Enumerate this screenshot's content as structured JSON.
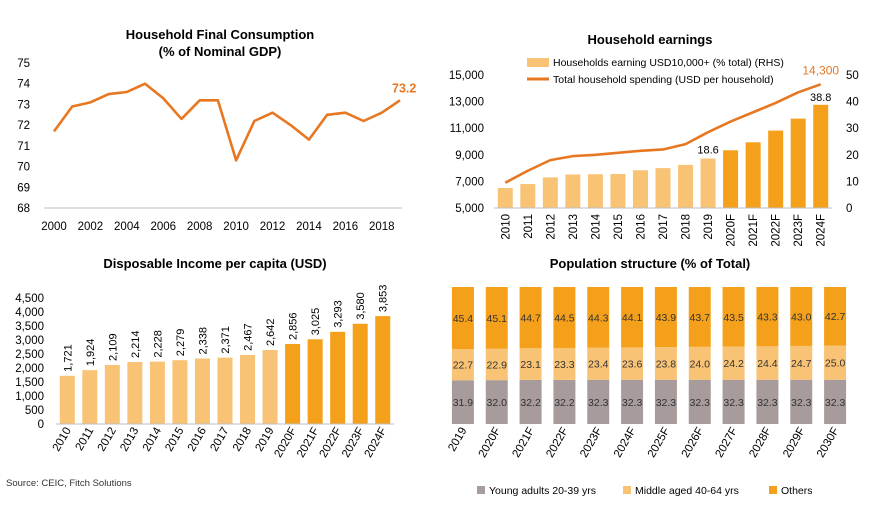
{
  "source_note": "Source: CEIC, Fitch Solutions",
  "chart_data": [
    {
      "type": "line",
      "title": "Household Final Consumption",
      "subtitle": "(% of Nominal GDP)",
      "x": [
        2000,
        2001,
        2002,
        2003,
        2004,
        2005,
        2006,
        2007,
        2008,
        2009,
        2010,
        2011,
        2012,
        2013,
        2014,
        2015,
        2016,
        2017,
        2018,
        2019
      ],
      "x_tick_labels": [
        "2000",
        "2002",
        "2004",
        "2006",
        "2008",
        "2010",
        "2012",
        "2014",
        "2016",
        "2018"
      ],
      "series": [
        {
          "values": [
            71.7,
            72.9,
            73.1,
            73.5,
            73.6,
            74.0,
            73.3,
            72.3,
            73.2,
            73.2,
            70.3,
            72.2,
            72.6,
            72.0,
            71.3,
            72.5,
            72.6,
            72.2,
            72.6,
            73.2
          ]
        }
      ],
      "end_label": "73.2",
      "ylim": [
        68,
        75
      ],
      "y_ticks": [
        "68",
        "69",
        "70",
        "71",
        "72",
        "73",
        "74",
        "75"
      ],
      "colors": {
        "line": "#e87722",
        "end_label": "#e87722"
      }
    },
    {
      "type": "bar+line",
      "title": "Household earnings",
      "categories": [
        "2010",
        "2011",
        "2012",
        "2013",
        "2014",
        "2015",
        "2016",
        "2017",
        "2018",
        "2019",
        "2020F",
        "2021F",
        "2022F",
        "2023F",
        "2024F"
      ],
      "series": [
        {
          "name": "Households earning USD10,000+ (% total) (RHS)",
          "axis": "right",
          "values": [
            7.5,
            9.0,
            11.5,
            12.6,
            12.7,
            12.8,
            14.2,
            15.0,
            16.2,
            18.6,
            21.7,
            24.7,
            29.1,
            33.6,
            38.8
          ]
        },
        {
          "name": "Total household spending (USD per household)",
          "axis": "left",
          "values": [
            6900,
            7800,
            8600,
            8900,
            9000,
            9150,
            9300,
            9400,
            9800,
            10700,
            11500,
            12200,
            12900,
            13700,
            14300
          ]
        }
      ],
      "data_labels": {
        "bar_2019": "18.6",
        "bar_2024F": "38.8",
        "line_2024F": "14,300"
      },
      "ylim_left": [
        5000,
        15000
      ],
      "y_ticks_left": [
        "5,000",
        "7,000",
        "9,000",
        "11,000",
        "13,000",
        "15,000"
      ],
      "ylim_right": [
        0,
        50
      ],
      "y_ticks_right": [
        "0",
        "10",
        "20",
        "30",
        "40",
        "50"
      ],
      "colors": {
        "actual_bar": "#f9c375",
        "forecast_bar": "#f5a01a",
        "line": "#e87722"
      }
    },
    {
      "type": "bar",
      "title": "Disposable Income per capita (USD)",
      "categories": [
        "2010",
        "2011",
        "2012",
        "2013",
        "2014",
        "2015",
        "2016",
        "2017",
        "2018",
        "2019",
        "2020F",
        "2021F",
        "2022F",
        "2023F",
        "2024F"
      ],
      "values": [
        1721,
        1924,
        2109,
        2214,
        2228,
        2279,
        2338,
        2371,
        2467,
        2642,
        2856,
        3025,
        3293,
        3580,
        3853
      ],
      "value_labels": [
        "1,721",
        "1,924",
        "2,109",
        "2,214",
        "2,228",
        "2,279",
        "2,338",
        "2,371",
        "2,467",
        "2,642",
        "2,856",
        "3,025",
        "3,293",
        "3,580",
        "3,853"
      ],
      "ylim": [
        0,
        4500
      ],
      "y_ticks": [
        "0",
        "500",
        "1,000",
        "1,500",
        "2,000",
        "2,500",
        "3,000",
        "3,500",
        "4,000",
        "4,500"
      ],
      "colors": {
        "actual_bar": "#f9c375",
        "forecast_bar": "#f5a01a"
      }
    },
    {
      "type": "stacked-bar",
      "title": "Population structure (% of Total)",
      "categories": [
        "2019",
        "2020F",
        "2021F",
        "2022F",
        "2023F",
        "2024F",
        "2025F",
        "2026F",
        "2027F",
        "2028F",
        "2029F",
        "2030F"
      ],
      "series": [
        {
          "name": "Young adults 20-39 yrs",
          "values": [
            31.9,
            32.0,
            32.2,
            32.2,
            32.3,
            32.3,
            32.3,
            32.3,
            32.3,
            32.3,
            32.3,
            32.3
          ]
        },
        {
          "name": "Middle aged 40-64 yrs",
          "values": [
            22.7,
            22.9,
            23.1,
            23.3,
            23.4,
            23.6,
            23.8,
            24.0,
            24.2,
            24.4,
            24.7,
            25.0
          ]
        },
        {
          "name": "Others",
          "values": [
            45.4,
            45.1,
            44.7,
            44.5,
            44.3,
            44.1,
            43.9,
            43.7,
            43.5,
            43.3,
            43.0,
            42.7
          ]
        }
      ],
      "value_labels": [
        [
          "31.9",
          "32.0",
          "32.2",
          "32.2",
          "32.3",
          "32.3",
          "32.3",
          "32.3",
          "32.3",
          "32.3",
          "32.3",
          "32.3"
        ],
        [
          "22.7",
          "22.9",
          "23.1",
          "23.3",
          "23.4",
          "23.6",
          "23.8",
          "24.0",
          "24.2",
          "24.4",
          "24.7",
          "25.0"
        ],
        [
          "45.4",
          "45.1",
          "44.7",
          "44.5",
          "44.3",
          "44.1",
          "43.9",
          "43.7",
          "43.5",
          "43.3",
          "43.0",
          "42.7"
        ]
      ],
      "ylim": [
        0,
        100
      ],
      "colors": {
        "young": "#a89b9b",
        "middle": "#f9c375",
        "others": "#f5a01a"
      }
    }
  ]
}
